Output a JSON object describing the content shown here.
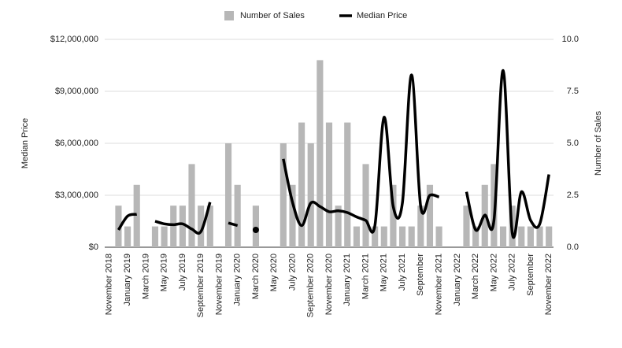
{
  "chart_data": {
    "type": "combo",
    "categories": [
      "November 2018",
      null,
      "January 2019",
      null,
      "March 2019",
      null,
      "May 2019",
      null,
      "July 2019",
      null,
      "September 2019",
      null,
      "November 2019",
      null,
      "January 2020",
      null,
      "March 2020",
      null,
      "May 2020",
      null,
      "July 2020",
      null,
      "September 2020",
      null,
      "November 2020",
      null,
      "January 2021",
      null,
      "March 2021",
      null,
      "May 2021",
      null,
      "July 2021",
      null,
      "September",
      null,
      "November 2021",
      null,
      "January 2022",
      null,
      "March 2022",
      null,
      "May 2022",
      null,
      "July 2022",
      null,
      "September",
      null,
      "November 2022"
    ],
    "series": [
      {
        "name": "Number of Sales",
        "type": "bar",
        "axis": "y2",
        "color": "#b7b7b7",
        "values": [
          0,
          2,
          1,
          3,
          0,
          1,
          1,
          2,
          2,
          4,
          2,
          2,
          0,
          5,
          3,
          0,
          2,
          0,
          0,
          5,
          3,
          6,
          5,
          9,
          6,
          2,
          6,
          1,
          4,
          1,
          1,
          3,
          1,
          1,
          2,
          3,
          1,
          0,
          0,
          2,
          1,
          3,
          4,
          1,
          2,
          1,
          1,
          1,
          1
        ]
      },
      {
        "name": "Median Price",
        "type": "line",
        "color": "#000000",
        "values": [
          null,
          1000000,
          1800000,
          1900000,
          null,
          1500000,
          1350000,
          1300000,
          1350000,
          1050000,
          900000,
          2600000,
          null,
          1400000,
          1250000,
          null,
          1000000,
          null,
          null,
          5100000,
          2600000,
          1250000,
          2550000,
          2350000,
          2050000,
          2100000,
          2000000,
          1750000,
          1550000,
          1250000,
          7500000,
          2350000,
          2550000,
          9950000,
          2350000,
          3000000,
          2900000,
          null,
          null,
          3200000,
          1000000,
          1850000,
          1550000,
          10200000,
          800000,
          3200000,
          1550000,
          1350000,
          4200000
        ]
      }
    ],
    "y_label": "Median Price",
    "y2_label": "Number of Sales",
    "ylim": [
      0,
      12000000
    ],
    "yticks": [
      {
        "value": 0,
        "label": "$0"
      },
      {
        "value": 3000000,
        "label": "$3,000,000"
      },
      {
        "value": 6000000,
        "label": "$6,000,000"
      },
      {
        "value": 9000000,
        "label": "$9,000,000"
      },
      {
        "value": 12000000,
        "label": "$12,000,000"
      }
    ],
    "y2lim": [
      0,
      10
    ],
    "y2ticks": [
      {
        "value": 0,
        "label": "0.0"
      },
      {
        "value": 2.5,
        "label": "2.5"
      },
      {
        "value": 5,
        "label": "5.0"
      },
      {
        "value": 7.5,
        "label": "7.5"
      },
      {
        "value": 10,
        "label": "10.0"
      }
    ],
    "grid": true,
    "legend": "top"
  }
}
